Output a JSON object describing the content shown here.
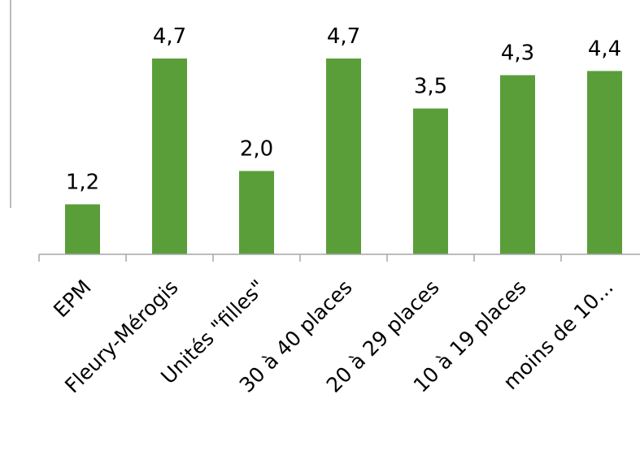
{
  "chart_data": {
    "type": "bar",
    "categories": [
      "EPM",
      "Fleury-Mérogis",
      "Unités \"filles\"",
      "30 à 40 places",
      "20 à 29 places",
      "10 à 19 places",
      "moins de 10..."
    ],
    "values": [
      1.2,
      4.7,
      2.0,
      4.7,
      3.5,
      4.3,
      4.4
    ],
    "value_labels": [
      "1,2",
      "4,7",
      "2,0",
      "4,7",
      "3,5",
      "4,3",
      "4,4"
    ],
    "title": "",
    "xlabel": "",
    "ylabel": "",
    "ylim": [
      0,
      4.7
    ],
    "grid": false,
    "bar_color": "#5a9e3a"
  }
}
